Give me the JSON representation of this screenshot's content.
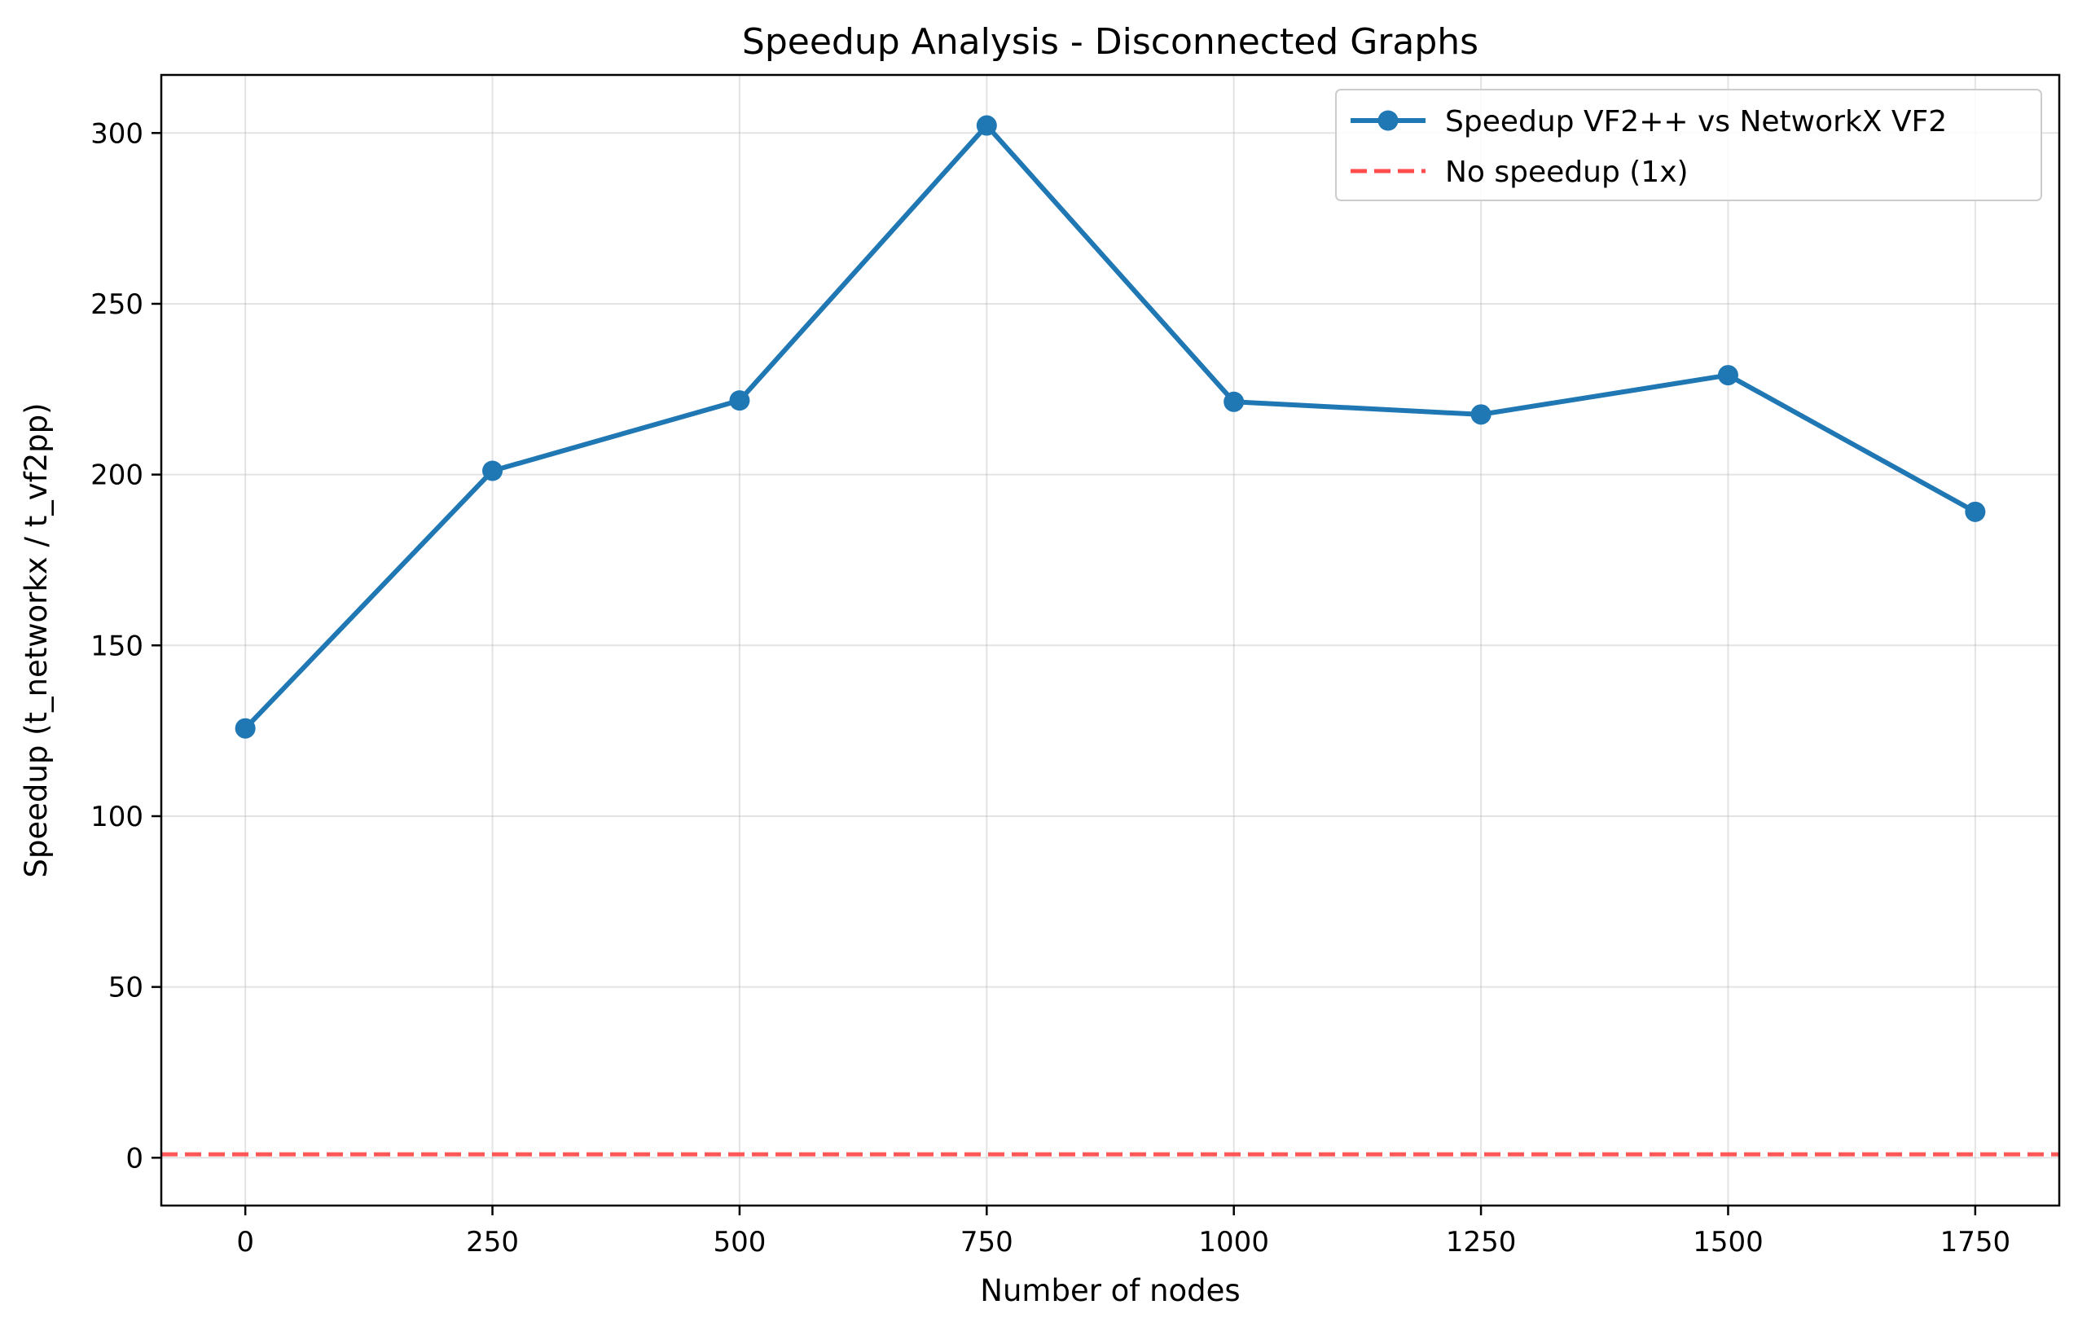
{
  "chart_data": {
    "type": "line",
    "title": "Speedup Analysis - Disconnected Graphs",
    "xlabel": "Number of nodes",
    "ylabel": "Speedup (t_networkx / t_vf2pp)",
    "xlim": [
      -85,
      1835
    ],
    "ylim": [
      -14,
      317
    ],
    "xticks": [
      0,
      250,
      500,
      750,
      1000,
      1250,
      1500,
      1750
    ],
    "yticks": [
      0,
      50,
      100,
      150,
      200,
      250,
      300
    ],
    "grid": true,
    "legend_position": "top-right",
    "series": [
      {
        "name": "Speedup VF2++ vs NetworkX VF2",
        "color": "#1f77b4",
        "style": "solid-with-circle-markers",
        "x": [
          0,
          250,
          500,
          750,
          1000,
          1250,
          1500,
          1750
        ],
        "y": [
          125.7,
          201.1,
          221.7,
          302.2,
          221.3,
          217.6,
          229.1,
          189.1
        ]
      }
    ],
    "reference_lines": [
      {
        "name": "No speedup (1x)",
        "color": "#ff4d4d",
        "style": "dashed",
        "y": 1
      }
    ]
  }
}
